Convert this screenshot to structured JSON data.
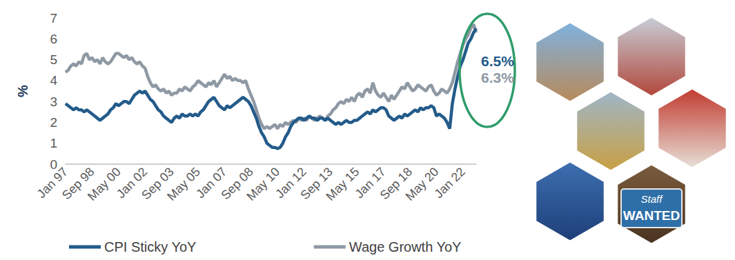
{
  "chart_data": {
    "type": "line",
    "y_label": "%",
    "categories": [
      "Jan 97",
      null,
      null,
      null,
      null,
      null,
      null,
      null,
      null,
      null,
      "Sep 98",
      null,
      null,
      null,
      null,
      null,
      null,
      null,
      null,
      null,
      "May 00",
      null,
      null,
      null,
      null,
      null,
      null,
      null,
      null,
      null,
      "Jan 02",
      null,
      null,
      null,
      null,
      null,
      null,
      null,
      null,
      null,
      "Sep 03",
      null,
      null,
      null,
      null,
      null,
      null,
      null,
      null,
      null,
      "May 05",
      null,
      null,
      null,
      null,
      null,
      null,
      null,
      null,
      null,
      "Jan 07",
      null,
      null,
      null,
      null,
      null,
      null,
      null,
      null,
      null,
      "Sep 08",
      null,
      null,
      null,
      null,
      null,
      null,
      null,
      null,
      null,
      "May 10",
      null,
      null,
      null,
      null,
      null,
      null,
      null,
      null,
      null,
      "Jan 12",
      null,
      null,
      null,
      null,
      null,
      null,
      null,
      null,
      null,
      "Sep 13",
      null,
      null,
      null,
      null,
      null,
      null,
      null,
      null,
      null,
      "May 15",
      null,
      null,
      null,
      null,
      null,
      null,
      null,
      null,
      null,
      "Jan 17",
      null,
      null,
      null,
      null,
      null,
      null,
      null,
      null,
      null,
      "Sep 18",
      null,
      null,
      null,
      null,
      null,
      null,
      null,
      null,
      null,
      "May 20",
      null,
      null,
      null,
      null,
      null,
      null,
      null,
      null,
      null,
      "Jan 22",
      null,
      null,
      null,
      null,
      null
    ],
    "series": [
      {
        "name": "CPI Sticky YoY",
        "color": "#235b8a",
        "values": [
          2.9,
          2.8,
          2.7,
          2.6,
          2.7,
          2.6,
          2.6,
          2.5,
          2.6,
          2.5,
          2.4,
          2.3,
          2.2,
          2.1,
          2.2,
          2.3,
          2.4,
          2.6,
          2.7,
          2.9,
          2.8,
          2.9,
          3.0,
          3.0,
          2.9,
          3.1,
          3.3,
          3.4,
          3.5,
          3.4,
          3.5,
          3.3,
          3.1,
          3.0,
          2.8,
          2.6,
          2.5,
          2.3,
          2.2,
          2.1,
          2.0,
          2.2,
          2.3,
          2.2,
          2.4,
          2.3,
          2.3,
          2.4,
          2.3,
          2.4,
          2.3,
          2.5,
          2.6,
          2.8,
          3.0,
          3.1,
          3.2,
          3.0,
          2.8,
          2.7,
          2.6,
          2.8,
          2.7,
          2.8,
          2.9,
          3.0,
          3.1,
          3.2,
          3.1,
          3.0,
          2.8,
          2.5,
          2.2,
          1.8,
          1.5,
          1.3,
          1.0,
          0.9,
          0.8,
          0.8,
          0.75,
          0.8,
          1.0,
          1.3,
          1.5,
          1.8,
          2.0,
          2.1,
          2.2,
          2.2,
          2.1,
          2.2,
          2.3,
          2.2,
          2.2,
          2.1,
          2.2,
          2.2,
          2.1,
          2.2,
          2.1,
          2.0,
          1.9,
          2.0,
          1.9,
          2.0,
          2.1,
          2.0,
          2.0,
          2.1,
          2.1,
          2.2,
          2.3,
          2.4,
          2.5,
          2.4,
          2.6,
          2.5,
          2.6,
          2.7,
          2.7,
          2.6,
          2.3,
          2.2,
          2.1,
          2.2,
          2.3,
          2.2,
          2.4,
          2.3,
          2.4,
          2.5,
          2.6,
          2.5,
          2.7,
          2.6,
          2.7,
          2.7,
          2.8,
          2.7,
          2.3,
          2.4,
          2.3,
          2.2,
          2.0,
          1.7,
          2.9,
          3.6,
          4.2,
          4.7,
          5.0,
          5.4,
          5.8,
          6.0,
          6.3,
          6.5
        ]
      },
      {
        "name": "Wage Growth YoY",
        "color": "#8e99a4",
        "values": [
          4.4,
          4.5,
          4.7,
          4.8,
          4.7,
          4.9,
          4.8,
          5.2,
          5.3,
          5.0,
          5.1,
          4.9,
          5.0,
          4.8,
          5.1,
          4.9,
          4.8,
          4.9,
          5.1,
          5.3,
          5.3,
          5.2,
          5.1,
          5.2,
          5.0,
          5.1,
          4.9,
          4.8,
          4.9,
          4.7,
          4.6,
          4.2,
          3.9,
          3.7,
          3.8,
          3.6,
          3.5,
          3.6,
          3.4,
          3.5,
          3.3,
          3.4,
          3.4,
          3.6,
          3.5,
          3.7,
          3.6,
          3.5,
          3.7,
          3.8,
          4.0,
          3.9,
          3.8,
          3.7,
          3.9,
          3.8,
          4.0,
          3.7,
          3.9,
          4.1,
          4.3,
          4.1,
          4.2,
          4.0,
          4.1,
          4.0,
          4.0,
          3.9,
          4.0,
          3.6,
          3.3,
          3.0,
          2.6,
          2.2,
          1.9,
          1.7,
          1.8,
          1.7,
          1.8,
          1.9,
          1.7,
          1.9,
          1.8,
          2.0,
          1.9,
          2.0,
          2.1,
          2.0,
          2.2,
          2.1,
          2.2,
          2.1,
          2.3,
          2.2,
          2.1,
          2.2,
          2.3,
          2.2,
          2.1,
          2.3,
          2.4,
          2.6,
          2.7,
          2.9,
          3.0,
          2.9,
          3.1,
          3.0,
          3.2,
          3.0,
          3.3,
          3.4,
          3.2,
          3.5,
          3.6,
          3.4,
          3.9,
          3.5,
          3.3,
          3.2,
          3.4,
          3.2,
          3.0,
          3.3,
          3.1,
          3.3,
          3.5,
          3.7,
          3.6,
          3.9,
          3.7,
          3.5,
          3.6,
          3.8,
          3.7,
          3.6,
          3.5,
          3.7,
          3.8,
          3.5,
          3.3,
          3.4,
          3.6,
          3.5,
          3.4,
          3.6,
          3.9,
          4.4,
          4.9,
          5.3,
          5.7,
          6.0,
          6.2,
          6.5,
          6.7,
          6.3
        ]
      }
    ],
    "ylim": [
      0,
      7
    ],
    "yticks": [
      0,
      1,
      2,
      3,
      4,
      5,
      6,
      7
    ],
    "grid": false,
    "legend": "bottom",
    "annotations": [
      {
        "text": "6.5%",
        "series": "CPI Sticky YoY"
      },
      {
        "text": "6.3%",
        "series": "Wage Growth YoY"
      }
    ],
    "picture_texts": [
      "Staff",
      "WANTED"
    ]
  }
}
